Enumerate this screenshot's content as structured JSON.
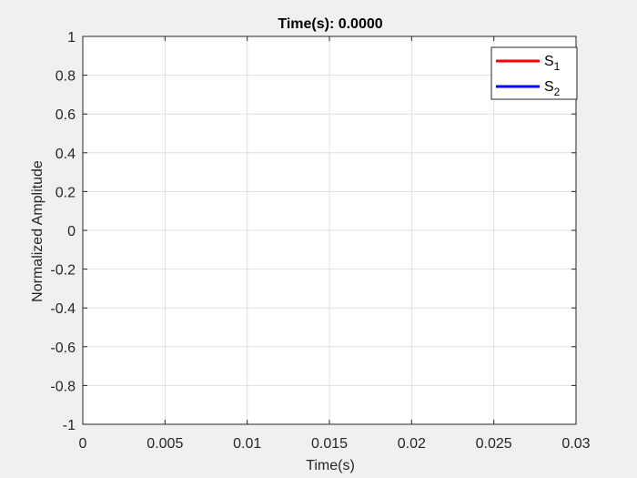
{
  "chart_data": {
    "type": "line",
    "title": "Time(s): 0.0000",
    "xlabel": "Time(s)",
    "ylabel": "Normalized Amplitude",
    "xlim": [
      0,
      0.03
    ],
    "ylim": [
      -1,
      1
    ],
    "x_ticks": [
      0,
      0.005,
      0.01,
      0.015,
      0.02,
      0.025,
      0.03
    ],
    "x_tick_labels": [
      "0",
      "0.005",
      "0.01",
      "0.015",
      "0.02",
      "0.025",
      "0.03"
    ],
    "y_ticks": [
      1,
      0.8,
      0.6,
      0.4,
      0.2,
      0,
      -0.2,
      -0.4,
      -0.6,
      -0.8,
      -1
    ],
    "y_tick_labels": [
      "1",
      "0.8",
      "0.6",
      "0.4",
      "0.2",
      "0",
      "-0.2",
      "-0.4",
      "-0.6",
      "-0.8",
      "-1"
    ],
    "grid": true,
    "legend_position": "top-right",
    "series": [
      {
        "label_base": "S",
        "label_sub": "1",
        "color": "#ff0000",
        "x": [],
        "y": []
      },
      {
        "label_base": "S",
        "label_sub": "2",
        "color": "#0000ff",
        "x": [],
        "y": []
      }
    ]
  }
}
